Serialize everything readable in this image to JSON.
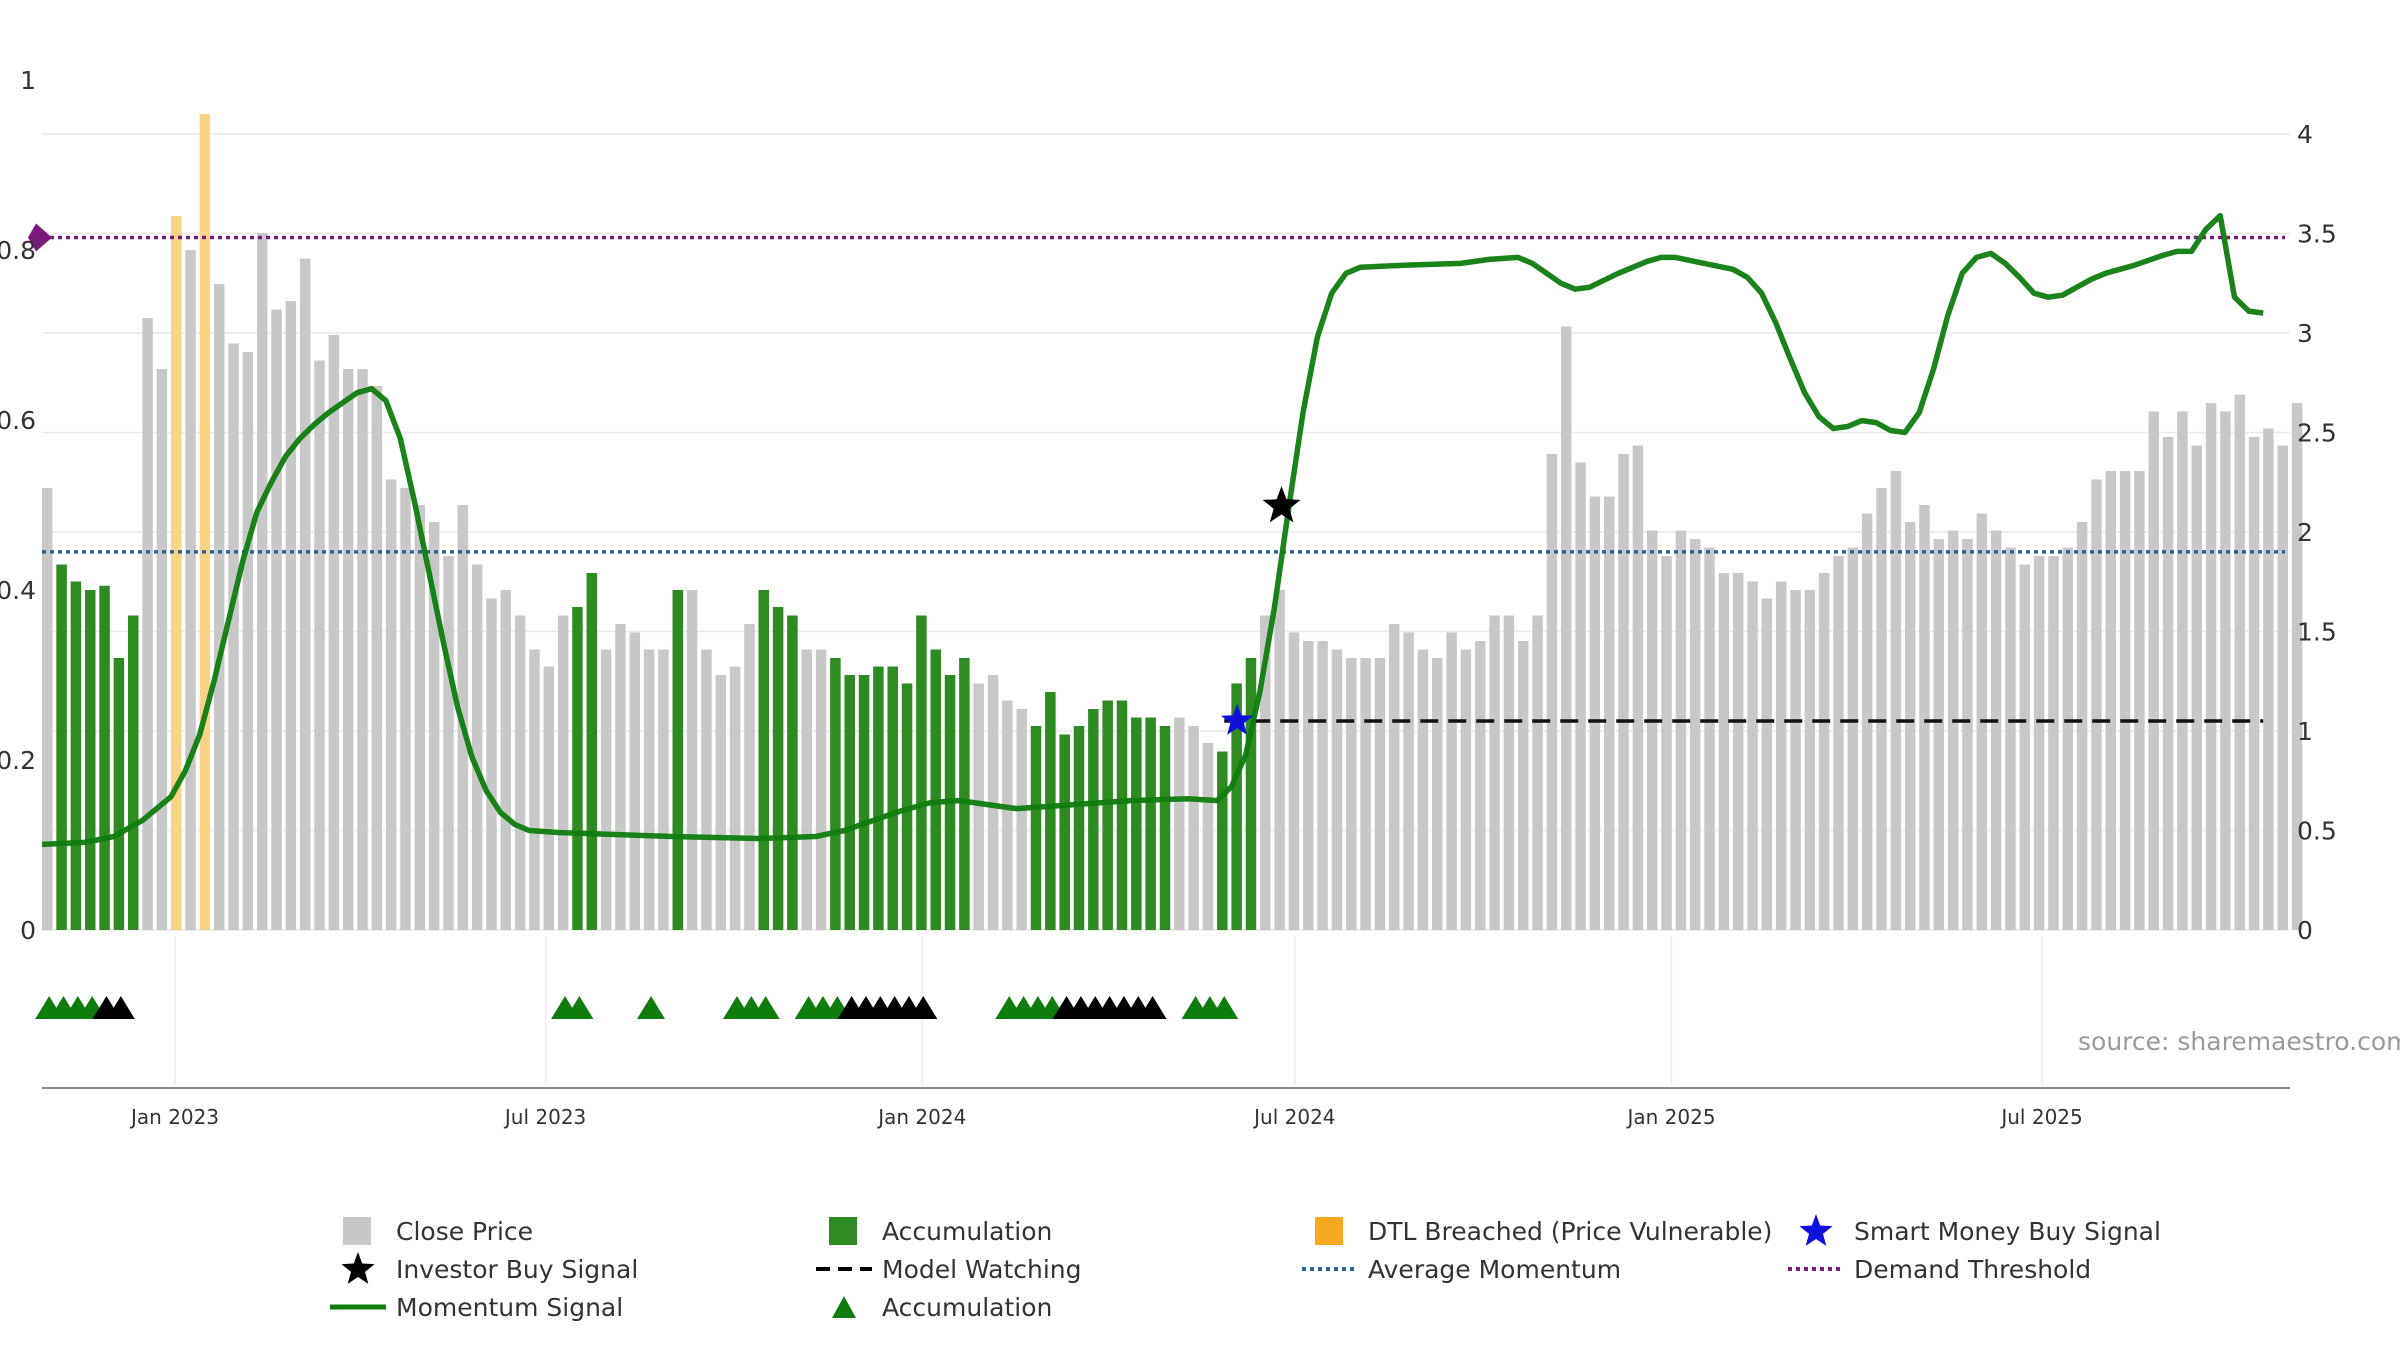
{
  "chart_data": {
    "type": "bar",
    "title": "",
    "source_note": "source: sharemaestro.com",
    "x_ticks": [
      "Jan 2023",
      "Jul 2023",
      "Jan 2024",
      "Jul 2024",
      "Jan 2025",
      "Jul 2025"
    ],
    "left_axis": {
      "ticks": [
        "0",
        "0.2",
        "0.4",
        "0.6",
        "0.8",
        "1"
      ],
      "ylim": [
        0,
        1
      ]
    },
    "right_axis": {
      "ticks": [
        "0",
        "0.5",
        "1",
        "1.5",
        "2",
        "2.5",
        "3",
        "3.5",
        "4"
      ],
      "ylim": [
        0,
        4
      ]
    },
    "bar_state_codes": {
      "g": "Close Price",
      "a": "Accumulation",
      "d": "DTL Breached (Price Vulnerable)"
    },
    "weeks_start": "2022-10-28",
    "bars": [
      {
        "v": 0.52,
        "s": "g"
      },
      {
        "v": 0.43,
        "s": "a"
      },
      {
        "v": 0.41,
        "s": "a"
      },
      {
        "v": 0.4,
        "s": "a"
      },
      {
        "v": 0.405,
        "s": "a"
      },
      {
        "v": 0.32,
        "s": "a"
      },
      {
        "v": 0.37,
        "s": "a"
      },
      {
        "v": 0.72,
        "s": "g"
      },
      {
        "v": 0.66,
        "s": "g"
      },
      {
        "v": 0.84,
        "s": "d"
      },
      {
        "v": 0.8,
        "s": "g"
      },
      {
        "v": 0.96,
        "s": "d"
      },
      {
        "v": 0.76,
        "s": "g"
      },
      {
        "v": 0.69,
        "s": "g"
      },
      {
        "v": 0.68,
        "s": "g"
      },
      {
        "v": 0.82,
        "s": "g"
      },
      {
        "v": 0.73,
        "s": "g"
      },
      {
        "v": 0.74,
        "s": "g"
      },
      {
        "v": 0.79,
        "s": "g"
      },
      {
        "v": 0.67,
        "s": "g"
      },
      {
        "v": 0.7,
        "s": "g"
      },
      {
        "v": 0.66,
        "s": "g"
      },
      {
        "v": 0.66,
        "s": "g"
      },
      {
        "v": 0.64,
        "s": "g"
      },
      {
        "v": 0.53,
        "s": "g"
      },
      {
        "v": 0.52,
        "s": "g"
      },
      {
        "v": 0.5,
        "s": "g"
      },
      {
        "v": 0.48,
        "s": "g"
      },
      {
        "v": 0.44,
        "s": "g"
      },
      {
        "v": 0.5,
        "s": "g"
      },
      {
        "v": 0.43,
        "s": "g"
      },
      {
        "v": 0.39,
        "s": "g"
      },
      {
        "v": 0.4,
        "s": "g"
      },
      {
        "v": 0.37,
        "s": "g"
      },
      {
        "v": 0.33,
        "s": "g"
      },
      {
        "v": 0.31,
        "s": "g"
      },
      {
        "v": 0.37,
        "s": "g"
      },
      {
        "v": 0.38,
        "s": "a"
      },
      {
        "v": 0.42,
        "s": "a"
      },
      {
        "v": 0.33,
        "s": "g"
      },
      {
        "v": 0.36,
        "s": "g"
      },
      {
        "v": 0.35,
        "s": "g"
      },
      {
        "v": 0.33,
        "s": "g"
      },
      {
        "v": 0.33,
        "s": "g"
      },
      {
        "v": 0.4,
        "s": "a"
      },
      {
        "v": 0.4,
        "s": "g"
      },
      {
        "v": 0.33,
        "s": "g"
      },
      {
        "v": 0.3,
        "s": "g"
      },
      {
        "v": 0.31,
        "s": "g"
      },
      {
        "v": 0.36,
        "s": "g"
      },
      {
        "v": 0.4,
        "s": "a"
      },
      {
        "v": 0.38,
        "s": "a"
      },
      {
        "v": 0.37,
        "s": "a"
      },
      {
        "v": 0.33,
        "s": "g"
      },
      {
        "v": 0.33,
        "s": "g"
      },
      {
        "v": 0.32,
        "s": "a"
      },
      {
        "v": 0.3,
        "s": "a"
      },
      {
        "v": 0.3,
        "s": "a"
      },
      {
        "v": 0.31,
        "s": "a"
      },
      {
        "v": 0.31,
        "s": "a"
      },
      {
        "v": 0.29,
        "s": "a"
      },
      {
        "v": 0.37,
        "s": "a"
      },
      {
        "v": 0.33,
        "s": "a"
      },
      {
        "v": 0.3,
        "s": "a"
      },
      {
        "v": 0.32,
        "s": "a"
      },
      {
        "v": 0.29,
        "s": "g"
      },
      {
        "v": 0.3,
        "s": "g"
      },
      {
        "v": 0.27,
        "s": "g"
      },
      {
        "v": 0.26,
        "s": "g"
      },
      {
        "v": 0.24,
        "s": "a"
      },
      {
        "v": 0.28,
        "s": "a"
      },
      {
        "v": 0.23,
        "s": "a"
      },
      {
        "v": 0.24,
        "s": "a"
      },
      {
        "v": 0.26,
        "s": "a"
      },
      {
        "v": 0.27,
        "s": "a"
      },
      {
        "v": 0.27,
        "s": "a"
      },
      {
        "v": 0.25,
        "s": "a"
      },
      {
        "v": 0.25,
        "s": "a"
      },
      {
        "v": 0.24,
        "s": "a"
      },
      {
        "v": 0.25,
        "s": "g"
      },
      {
        "v": 0.24,
        "s": "g"
      },
      {
        "v": 0.22,
        "s": "g"
      },
      {
        "v": 0.21,
        "s": "a"
      },
      {
        "v": 0.29,
        "s": "a"
      },
      {
        "v": 0.32,
        "s": "a"
      },
      {
        "v": 0.37,
        "s": "g"
      },
      {
        "v": 0.4,
        "s": "g"
      },
      {
        "v": 0.35,
        "s": "g"
      },
      {
        "v": 0.34,
        "s": "g"
      },
      {
        "v": 0.34,
        "s": "g"
      },
      {
        "v": 0.33,
        "s": "g"
      },
      {
        "v": 0.32,
        "s": "g"
      },
      {
        "v": 0.32,
        "s": "g"
      },
      {
        "v": 0.32,
        "s": "g"
      },
      {
        "v": 0.36,
        "s": "g"
      },
      {
        "v": 0.35,
        "s": "g"
      },
      {
        "v": 0.33,
        "s": "g"
      },
      {
        "v": 0.32,
        "s": "g"
      },
      {
        "v": 0.35,
        "s": "g"
      },
      {
        "v": 0.33,
        "s": "g"
      },
      {
        "v": 0.34,
        "s": "g"
      },
      {
        "v": 0.37,
        "s": "g"
      },
      {
        "v": 0.37,
        "s": "g"
      },
      {
        "v": 0.34,
        "s": "g"
      },
      {
        "v": 0.37,
        "s": "g"
      },
      {
        "v": 0.56,
        "s": "g"
      },
      {
        "v": 0.71,
        "s": "g"
      },
      {
        "v": 0.55,
        "s": "g"
      },
      {
        "v": 0.51,
        "s": "g"
      },
      {
        "v": 0.51,
        "s": "g"
      },
      {
        "v": 0.56,
        "s": "g"
      },
      {
        "v": 0.57,
        "s": "g"
      },
      {
        "v": 0.47,
        "s": "g"
      },
      {
        "v": 0.44,
        "s": "g"
      },
      {
        "v": 0.47,
        "s": "g"
      },
      {
        "v": 0.46,
        "s": "g"
      },
      {
        "v": 0.45,
        "s": "g"
      },
      {
        "v": 0.42,
        "s": "g"
      },
      {
        "v": 0.42,
        "s": "g"
      },
      {
        "v": 0.41,
        "s": "g"
      },
      {
        "v": 0.39,
        "s": "g"
      },
      {
        "v": 0.41,
        "s": "g"
      },
      {
        "v": 0.4,
        "s": "g"
      },
      {
        "v": 0.4,
        "s": "g"
      },
      {
        "v": 0.42,
        "s": "g"
      },
      {
        "v": 0.44,
        "s": "g"
      },
      {
        "v": 0.45,
        "s": "g"
      },
      {
        "v": 0.49,
        "s": "g"
      },
      {
        "v": 0.52,
        "s": "g"
      },
      {
        "v": 0.54,
        "s": "g"
      },
      {
        "v": 0.48,
        "s": "g"
      },
      {
        "v": 0.5,
        "s": "g"
      },
      {
        "v": 0.46,
        "s": "g"
      },
      {
        "v": 0.47,
        "s": "g"
      },
      {
        "v": 0.46,
        "s": "g"
      },
      {
        "v": 0.49,
        "s": "g"
      },
      {
        "v": 0.47,
        "s": "g"
      },
      {
        "v": 0.45,
        "s": "g"
      },
      {
        "v": 0.43,
        "s": "g"
      },
      {
        "v": 0.44,
        "s": "g"
      },
      {
        "v": 0.44,
        "s": "g"
      },
      {
        "v": 0.45,
        "s": "g"
      },
      {
        "v": 0.48,
        "s": "g"
      },
      {
        "v": 0.53,
        "s": "g"
      },
      {
        "v": 0.54,
        "s": "g"
      },
      {
        "v": 0.54,
        "s": "g"
      },
      {
        "v": 0.54,
        "s": "g"
      },
      {
        "v": 0.61,
        "s": "g"
      },
      {
        "v": 0.58,
        "s": "g"
      },
      {
        "v": 0.61,
        "s": "g"
      },
      {
        "v": 0.57,
        "s": "g"
      },
      {
        "v": 0.62,
        "s": "g"
      },
      {
        "v": 0.61,
        "s": "g"
      },
      {
        "v": 0.63,
        "s": "g"
      },
      {
        "v": 0.58,
        "s": "g"
      },
      {
        "v": 0.59,
        "s": "g"
      },
      {
        "v": 0.57,
        "s": "g"
      },
      {
        "v": 0.62,
        "s": "g"
      }
    ],
    "momentum_signal": [
      [
        0,
        0.43
      ],
      [
        3,
        0.44
      ],
      [
        5,
        0.47
      ],
      [
        7,
        0.55
      ],
      [
        9,
        0.67
      ],
      [
        10,
        0.8
      ],
      [
        11,
        0.98
      ],
      [
        12,
        1.25
      ],
      [
        13,
        1.55
      ],
      [
        14,
        1.85
      ],
      [
        15,
        2.1
      ],
      [
        16,
        2.25
      ],
      [
        17,
        2.38
      ],
      [
        18,
        2.47
      ],
      [
        19,
        2.54
      ],
      [
        20,
        2.6
      ],
      [
        21,
        2.65
      ],
      [
        22,
        2.7
      ],
      [
        23,
        2.72
      ],
      [
        24,
        2.66
      ],
      [
        25,
        2.47
      ],
      [
        26,
        2.15
      ],
      [
        27,
        1.8
      ],
      [
        28,
        1.45
      ],
      [
        29,
        1.12
      ],
      [
        30,
        0.87
      ],
      [
        31,
        0.7
      ],
      [
        32,
        0.59
      ],
      [
        33,
        0.53
      ],
      [
        34,
        0.5
      ],
      [
        36,
        0.49
      ],
      [
        40,
        0.48
      ],
      [
        44,
        0.47
      ],
      [
        50,
        0.46
      ],
      [
        54,
        0.47
      ],
      [
        56,
        0.5
      ],
      [
        58,
        0.55
      ],
      [
        60,
        0.6
      ],
      [
        62,
        0.64
      ],
      [
        64,
        0.65
      ],
      [
        66,
        0.63
      ],
      [
        68,
        0.61
      ],
      [
        72,
        0.63
      ],
      [
        76,
        0.65
      ],
      [
        80,
        0.66
      ],
      [
        82,
        0.65
      ],
      [
        83,
        0.72
      ],
      [
        84,
        0.88
      ],
      [
        85,
        1.2
      ],
      [
        86,
        1.62
      ],
      [
        87,
        2.12
      ],
      [
        88,
        2.6
      ],
      [
        89,
        2.98
      ],
      [
        90,
        3.2
      ],
      [
        91,
        3.3
      ],
      [
        92,
        3.33
      ],
      [
        95,
        3.34
      ],
      [
        99,
        3.35
      ],
      [
        101,
        3.37
      ],
      [
        103,
        3.38
      ],
      [
        104,
        3.35
      ],
      [
        106,
        3.25
      ],
      [
        107,
        3.22
      ],
      [
        108,
        3.23
      ],
      [
        110,
        3.3
      ],
      [
        112,
        3.36
      ],
      [
        113,
        3.38
      ],
      [
        114,
        3.38
      ],
      [
        116,
        3.35
      ],
      [
        118,
        3.32
      ],
      [
        119,
        3.28
      ],
      [
        120,
        3.2
      ],
      [
        121,
        3.05
      ],
      [
        122,
        2.87
      ],
      [
        123,
        2.7
      ],
      [
        124,
        2.58
      ],
      [
        125,
        2.52
      ],
      [
        126,
        2.53
      ],
      [
        127,
        2.56
      ],
      [
        128,
        2.55
      ],
      [
        129,
        2.51
      ],
      [
        130,
        2.5
      ],
      [
        131,
        2.6
      ],
      [
        132,
        2.82
      ],
      [
        133,
        3.09
      ],
      [
        134,
        3.3
      ],
      [
        135,
        3.38
      ],
      [
        136,
        3.4
      ],
      [
        137,
        3.35
      ],
      [
        138,
        3.28
      ],
      [
        139,
        3.2
      ],
      [
        140,
        3.18
      ],
      [
        141,
        3.19
      ],
      [
        142,
        3.23
      ],
      [
        143,
        3.27
      ],
      [
        144,
        3.3
      ],
      [
        146,
        3.34
      ],
      [
        148,
        3.39
      ],
      [
        149,
        3.41
      ],
      [
        150,
        3.41
      ],
      [
        151,
        3.52
      ],
      [
        152,
        3.59
      ],
      [
        153,
        3.18
      ],
      [
        154,
        3.11
      ],
      [
        155,
        3.1
      ]
    ],
    "average_momentum": 1.9,
    "demand_threshold": 3.48,
    "model_watching": {
      "from_week": 82.5,
      "to_week": 155,
      "level": 1.05
    },
    "investor_buy_signals": [
      {
        "week": 86.5,
        "value": 2.13
      }
    ],
    "smart_money_buy_signals": [
      {
        "week": 83.4,
        "value": 1.05
      }
    ],
    "accumulation_markers": [
      {
        "w": 0.5,
        "c": "green"
      },
      {
        "w": 1.5,
        "c": "green"
      },
      {
        "w": 2.5,
        "c": "green"
      },
      {
        "w": 3.5,
        "c": "green"
      },
      {
        "w": 4.5,
        "c": "black"
      },
      {
        "w": 5.5,
        "c": "black"
      },
      {
        "w": 36.5,
        "c": "green"
      },
      {
        "w": 37.5,
        "c": "green"
      },
      {
        "w": 42.5,
        "c": "green"
      },
      {
        "w": 48.5,
        "c": "green"
      },
      {
        "w": 49.5,
        "c": "green"
      },
      {
        "w": 50.5,
        "c": "green"
      },
      {
        "w": 53.5,
        "c": "green"
      },
      {
        "w": 54.5,
        "c": "green"
      },
      {
        "w": 55.5,
        "c": "green"
      },
      {
        "w": 56.5,
        "c": "black"
      },
      {
        "w": 57.5,
        "c": "black"
      },
      {
        "w": 58.5,
        "c": "black"
      },
      {
        "w": 59.5,
        "c": "black"
      },
      {
        "w": 60.5,
        "c": "black"
      },
      {
        "w": 61.5,
        "c": "black"
      },
      {
        "w": 67.5,
        "c": "green"
      },
      {
        "w": 68.5,
        "c": "green"
      },
      {
        "w": 69.5,
        "c": "green"
      },
      {
        "w": 70.5,
        "c": "green"
      },
      {
        "w": 71.5,
        "c": "black"
      },
      {
        "w": 72.5,
        "c": "black"
      },
      {
        "w": 73.5,
        "c": "black"
      },
      {
        "w": 74.5,
        "c": "black"
      },
      {
        "w": 75.5,
        "c": "black"
      },
      {
        "w": 76.5,
        "c": "black"
      },
      {
        "w": 77.5,
        "c": "black"
      },
      {
        "w": 80.5,
        "c": "green"
      },
      {
        "w": 81.5,
        "c": "green"
      },
      {
        "w": 82.5,
        "c": "green"
      }
    ],
    "legend": [
      {
        "label": "Close Price",
        "symbol": "gray-square"
      },
      {
        "label": "Accumulation",
        "symbol": "green-square"
      },
      {
        "label": "DTL Breached (Price Vulnerable)",
        "symbol": "orange-square"
      },
      {
        "label": "Smart Money Buy Signal",
        "symbol": "blue-star"
      },
      {
        "label": "Investor Buy Signal",
        "symbol": "black-star"
      },
      {
        "label": "Model Watching",
        "symbol": "black-dashed-line"
      },
      {
        "label": "Average Momentum",
        "symbol": "blue-dotted-line"
      },
      {
        "label": "Demand Threshold",
        "symbol": "purple-dotted-line"
      },
      {
        "label": "Momentum Signal",
        "symbol": "green-line"
      },
      {
        "label": "Accumulation",
        "symbol": "green-triangle"
      }
    ],
    "colors": {
      "close_price": "#c8c8c8",
      "accumulation": "#2e8b22",
      "dtl_breached": "#fbd386",
      "momentum": "#0e7d0e",
      "average_momentum": "#2a6496",
      "demand_threshold": "#7a1a7a",
      "smart_money": "#1010dd",
      "investor": "#000000"
    }
  }
}
